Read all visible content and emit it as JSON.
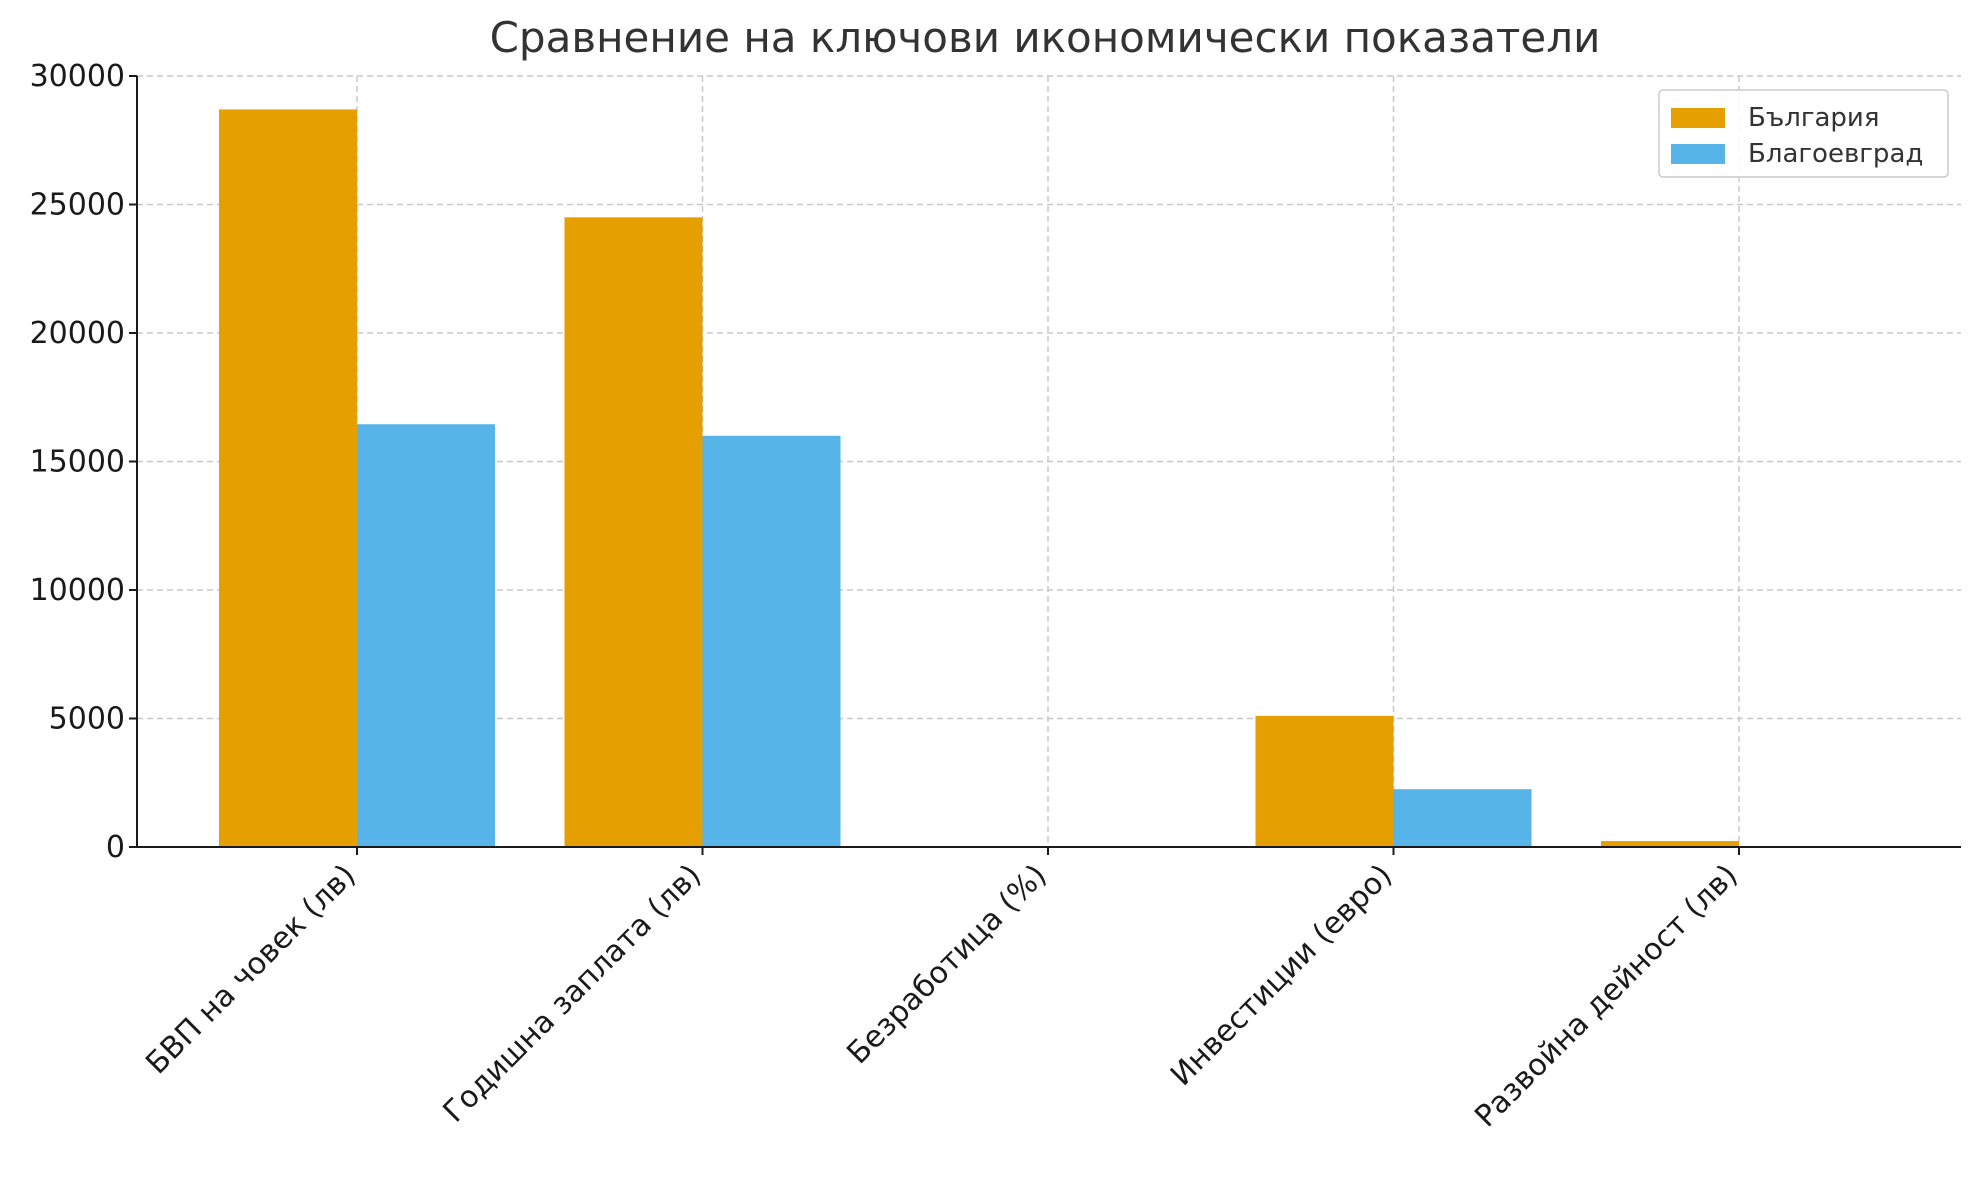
{
  "chart_data": {
    "type": "bar",
    "title": "Сравнение на ключови икономически показатели",
    "xlabel": "",
    "ylabel": "",
    "categories": [
      "БВП на човек (лв)",
      "Годишна заплата (лв)",
      "Безработица (%)",
      "Инвестиции (евро)",
      "Развойна дейност (лв)"
    ],
    "series": [
      {
        "name": "България",
        "values": [
          28700,
          24500,
          4.5,
          5100,
          230
        ],
        "color": "#E69F00"
      },
      {
        "name": "Благоевград",
        "values": [
          16450,
          16000,
          3.5,
          2250,
          10
        ],
        "color": "#56B4E9"
      }
    ],
    "yticks": [
      0,
      5000,
      10000,
      15000,
      20000,
      25000,
      30000
    ],
    "ylim": [
      0,
      30000
    ],
    "grid": true,
    "legend_position": "top-right"
  }
}
